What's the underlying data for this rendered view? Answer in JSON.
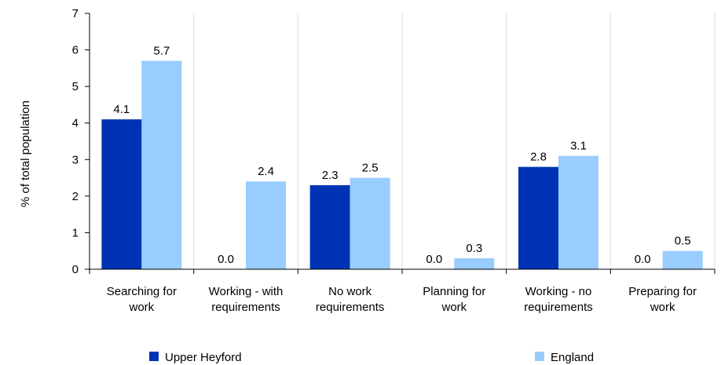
{
  "chart_data": {
    "type": "bar",
    "ylabel": "% of total population",
    "xlabel": "",
    "ylim": [
      0,
      7
    ],
    "yticks": [
      "0",
      "1",
      "2",
      "3",
      "4",
      "5",
      "6",
      "7"
    ],
    "grid": "vertical category separators",
    "legend_position": "bottom",
    "categories": [
      [
        "Searching for",
        "work"
      ],
      [
        "Working - with",
        "requirements"
      ],
      [
        "No work",
        "requirements"
      ],
      [
        "Planning for",
        "work"
      ],
      [
        "Working - no",
        "requirements"
      ],
      [
        "Preparing for",
        "work"
      ]
    ],
    "series": [
      {
        "name": "Upper Heyford",
        "color": "#0033b3",
        "values": [
          4.1,
          0.0,
          2.3,
          0.0,
          2.8,
          0.0
        ],
        "labels": [
          "4.1",
          "0.0",
          "2.3",
          "0.0",
          "2.8",
          "0.0"
        ]
      },
      {
        "name": "England",
        "color": "#99ccff",
        "values": [
          5.7,
          2.4,
          2.5,
          0.3,
          3.1,
          0.5
        ],
        "labels": [
          "5.7",
          "2.4",
          "2.5",
          "0.3",
          "3.1",
          "0.5"
        ]
      }
    ]
  }
}
